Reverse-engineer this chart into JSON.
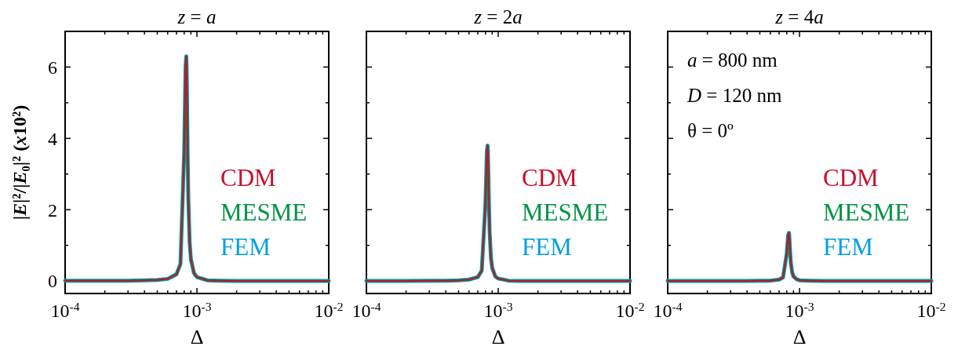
{
  "chart_data": [
    {
      "type": "line",
      "title": "z = a",
      "xlabel": "Δ",
      "ylabel": "|E|²/|E₀|² (x10²)",
      "log": "x",
      "xlim": [
        0.0001,
        0.01
      ],
      "ylim": [
        -0.35,
        7
      ],
      "xticks": [
        {
          "value": 0.0001,
          "label": "10$^{-4}$"
        },
        {
          "value": 0.0002,
          "label": null
        },
        {
          "value": 0.0003,
          "label": null
        },
        {
          "value": 0.0004,
          "label": null
        },
        {
          "value": 0.0005,
          "label": null
        },
        {
          "value": 0.0006,
          "label": null
        },
        {
          "value": 0.0007,
          "label": null
        },
        {
          "value": 0.0008,
          "label": null
        },
        {
          "value": 0.0009,
          "label": null
        },
        {
          "value": 0.001,
          "label": "10$^{-3}$"
        },
        {
          "value": 0.002,
          "label": null
        },
        {
          "value": 0.003,
          "label": null
        },
        {
          "value": 0.004,
          "label": null
        },
        {
          "value": 0.005,
          "label": null
        },
        {
          "value": 0.006,
          "label": null
        },
        {
          "value": 0.007,
          "label": null
        },
        {
          "value": 0.008,
          "label": null
        },
        {
          "value": 0.009,
          "label": null
        },
        {
          "value": 0.01,
          "label": "10$^{-2}$"
        }
      ],
      "yticks": [
        0,
        {
          "value": 1,
          "label": null
        },
        2,
        {
          "value": 3,
          "label": null
        },
        4,
        {
          "value": 5,
          "label": null
        },
        6
      ],
      "x": [
        0.0001,
        0.0002,
        0.0003,
        0.0004,
        0.0005,
        0.0006,
        0.0007,
        0.00075,
        0.0008,
        0.00082,
        0.00083,
        0.000835,
        0.00084,
        0.00085,
        0.00086,
        0.00088,
        0.0009,
        0.00095,
        0.001,
        0.0012,
        0.0015,
        0.002,
        0.003,
        0.005,
        0.01
      ],
      "legend": "right",
      "grid": false,
      "marker": "none",
      "line_style": "solid",
      "series": [
        {
          "name": "CDM",
          "color": "#c8102e",
          "values": [
            0.01,
            0.01,
            0.01,
            0.02,
            0.03,
            0.06,
            0.19,
            0.48,
            3.59,
            6.02,
            6.3,
            6.02,
            5.3,
            3.59,
            2.33,
            1.1,
            0.61,
            0.22,
            0.11,
            0.02,
            0.01,
            0,
            0,
            0,
            0
          ]
        },
        {
          "name": "MESME",
          "color": "#009444",
          "values": [
            0.01,
            0.01,
            0.01,
            0.02,
            0.03,
            0.06,
            0.19,
            0.48,
            3.59,
            6.02,
            6.3,
            6.02,
            5.3,
            3.59,
            2.33,
            1.1,
            0.61,
            0.22,
            0.11,
            0.02,
            0.01,
            0,
            0,
            0,
            0
          ]
        },
        {
          "name": "FEM",
          "color": "#00a0e0",
          "values": [
            0.01,
            0.01,
            0.01,
            0.02,
            0.03,
            0.06,
            0.19,
            0.48,
            3.59,
            6.02,
            6.3,
            6.02,
            5.3,
            3.59,
            2.33,
            1.1,
            0.61,
            0.22,
            0.11,
            0.02,
            0.01,
            0,
            0,
            0,
            0
          ]
        }
      ]
    },
    {
      "type": "line",
      "title": "z = 2a",
      "xlabel": "Δ",
      "log": "x",
      "xlim": [
        0.0001,
        0.01
      ],
      "ylim": [
        -0.35,
        7
      ],
      "tick_labels": "x",
      "xticks": [
        {
          "value": 0.0001,
          "label": "10$^{-4}$"
        },
        {
          "value": 0.0002,
          "label": null
        },
        {
          "value": 0.0003,
          "label": null
        },
        {
          "value": 0.0004,
          "label": null
        },
        {
          "value": 0.0005,
          "label": null
        },
        {
          "value": 0.0006,
          "label": null
        },
        {
          "value": 0.0007,
          "label": null
        },
        {
          "value": 0.0008,
          "label": null
        },
        {
          "value": 0.0009,
          "label": null
        },
        {
          "value": 0.001,
          "label": "10$^{-3}$"
        },
        {
          "value": 0.002,
          "label": null
        },
        {
          "value": 0.003,
          "label": null
        },
        {
          "value": 0.004,
          "label": null
        },
        {
          "value": 0.005,
          "label": null
        },
        {
          "value": 0.006,
          "label": null
        },
        {
          "value": 0.007,
          "label": null
        },
        {
          "value": 0.008,
          "label": null
        },
        {
          "value": 0.009,
          "label": null
        },
        {
          "value": 0.01,
          "label": "10$^{-2}$"
        }
      ],
      "yticks": [
        0,
        {
          "value": 1,
          "label": null
        },
        2,
        {
          "value": 3,
          "label": null
        },
        4,
        {
          "value": 5,
          "label": null
        },
        6
      ],
      "x": [
        0.0001,
        0.0002,
        0.0003,
        0.0004,
        0.0005,
        0.0006,
        0.0007,
        0.00075,
        0.0008,
        0.00082,
        0.00083,
        0.000835,
        0.00084,
        0.00085,
        0.00086,
        0.00088,
        0.0009,
        0.00095,
        0.001,
        0.0012,
        0.0015,
        0.002,
        0.003,
        0.005,
        0.01
      ],
      "legend": "right",
      "grid": false,
      "marker": "none",
      "line_style": "solid",
      "series": [
        {
          "name": "CDM",
          "color": "#c8102e",
          "values": [
            0,
            0,
            0.01,
            0.01,
            0.02,
            0.04,
            0.11,
            0.29,
            2.17,
            3.63,
            3.8,
            3.63,
            3.2,
            2.17,
            1.41,
            0.66,
            0.37,
            0.13,
            0.07,
            0.01,
            0,
            0,
            0,
            0,
            0
          ]
        },
        {
          "name": "MESME",
          "color": "#009444",
          "values": [
            0,
            0,
            0.01,
            0.01,
            0.02,
            0.04,
            0.11,
            0.29,
            2.17,
            3.63,
            3.8,
            3.63,
            3.2,
            2.17,
            1.41,
            0.66,
            0.37,
            0.13,
            0.07,
            0.01,
            0,
            0,
            0,
            0,
            0
          ]
        },
        {
          "name": "FEM",
          "color": "#00a0e0",
          "values": [
            0,
            0,
            0.01,
            0.01,
            0.02,
            0.04,
            0.11,
            0.29,
            2.17,
            3.63,
            3.8,
            3.63,
            3.2,
            2.17,
            1.41,
            0.66,
            0.37,
            0.13,
            0.07,
            0.01,
            0,
            0,
            0,
            0,
            0
          ]
        }
      ]
    },
    {
      "type": "line",
      "title": "z = 4a",
      "xlabel": "Δ",
      "log": "x",
      "xlim": [
        0.0001,
        0.01
      ],
      "ylim": [
        -0.35,
        7
      ],
      "tick_labels": "x",
      "annotations": [
        "a = 800 nm",
        "D = 120 nm",
        "θ = 0º"
      ],
      "xticks": [
        {
          "value": 0.0001,
          "label": "10$^{-4}$"
        },
        {
          "value": 0.0002,
          "label": null
        },
        {
          "value": 0.0003,
          "label": null
        },
        {
          "value": 0.0004,
          "label": null
        },
        {
          "value": 0.0005,
          "label": null
        },
        {
          "value": 0.0006,
          "label": null
        },
        {
          "value": 0.0007,
          "label": null
        },
        {
          "value": 0.0008,
          "label": null
        },
        {
          "value": 0.0009,
          "label": null
        },
        {
          "value": 0.001,
          "label": "10$^{-3}$"
        },
        {
          "value": 0.002,
          "label": null
        },
        {
          "value": 0.003,
          "label": null
        },
        {
          "value": 0.004,
          "label": null
        },
        {
          "value": 0.005,
          "label": null
        },
        {
          "value": 0.006,
          "label": null
        },
        {
          "value": 0.007,
          "label": null
        },
        {
          "value": 0.008,
          "label": null
        },
        {
          "value": 0.009,
          "label": null
        },
        {
          "value": 0.01,
          "label": "10$^{-2}$"
        }
      ],
      "yticks": [
        0,
        {
          "value": 1,
          "label": null
        },
        2,
        {
          "value": 3,
          "label": null
        },
        4,
        {
          "value": 5,
          "label": null
        },
        6
      ],
      "x": [
        0.0001,
        0.0002,
        0.0003,
        0.0004,
        0.0005,
        0.0006,
        0.0007,
        0.00075,
        0.0008,
        0.00082,
        0.00083,
        0.000835,
        0.00084,
        0.00085,
        0.00086,
        0.00088,
        0.0009,
        0.00095,
        0.001,
        0.0012,
        0.0015,
        0.002,
        0.003,
        0.005,
        0.01
      ],
      "legend": "right",
      "grid": false,
      "marker": "none",
      "line_style": "solid",
      "series": [
        {
          "name": "CDM",
          "color": "#c8102e",
          "values": [
            0,
            0,
            0,
            0,
            0.01,
            0.01,
            0.04,
            0.1,
            0.77,
            1.29,
            1.35,
            1.29,
            1.13,
            0.77,
            0.5,
            0.24,
            0.13,
            0.05,
            0.02,
            0.01,
            0,
            0,
            0,
            0,
            0
          ]
        },
        {
          "name": "MESME",
          "color": "#009444",
          "values": [
            0,
            0,
            0,
            0,
            0.01,
            0.01,
            0.04,
            0.1,
            0.77,
            1.29,
            1.35,
            1.29,
            1.13,
            0.77,
            0.5,
            0.24,
            0.13,
            0.05,
            0.02,
            0.01,
            0,
            0,
            0,
            0,
            0
          ]
        },
        {
          "name": "FEM",
          "color": "#00a0e0",
          "values": [
            0,
            0,
            0,
            0,
            0.01,
            0.01,
            0.04,
            0.1,
            0.77,
            1.29,
            1.35,
            1.29,
            1.13,
            0.77,
            0.5,
            0.24,
            0.13,
            0.05,
            0.02,
            0.01,
            0,
            0,
            0,
            0,
            0
          ]
        }
      ]
    }
  ]
}
